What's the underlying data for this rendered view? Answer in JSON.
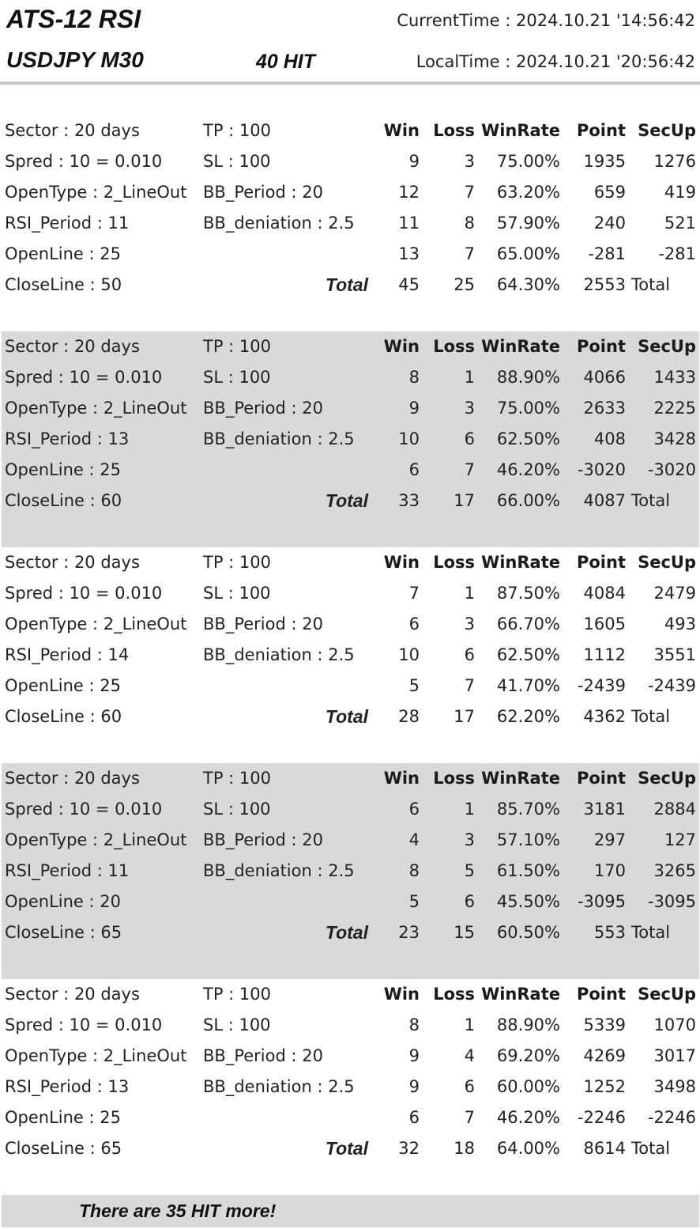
{
  "header": {
    "title": "ATS-12 RSI",
    "subtitle": "USDJPY M30",
    "hit": "40 HIT",
    "current_time": "CurrentTime : 2024.10.21  '14:56:42",
    "local_time": "LocalTime : 2024.10.21  '20:56:42"
  },
  "columns": {
    "win": "Win",
    "loss": "Loss",
    "winrate": "WinRate",
    "point": "Point",
    "secup": "SecUp"
  },
  "total_label": "Total",
  "total_word": "Total",
  "blocks": [
    {
      "params": [
        [
          "Sector : 20 days",
          "TP : 100"
        ],
        [
          "Spred : 10 = 0.010",
          "SL : 100"
        ],
        [
          "OpenType : 2_LineOut",
          "BB_Period : 20"
        ],
        [
          "RSI_Period : 11",
          "BB_deniation : 2.5"
        ],
        [
          "OpenLine : 25",
          ""
        ],
        [
          "CloseLine : 50",
          ""
        ]
      ],
      "stats": [
        [
          "9",
          "3",
          "75.00%",
          "1935",
          "1276"
        ],
        [
          "12",
          "7",
          "63.20%",
          "659",
          "419"
        ],
        [
          "11",
          "8",
          "57.90%",
          "240",
          "521"
        ],
        [
          "13",
          "7",
          "65.00%",
          "-281",
          "-281"
        ]
      ],
      "total": [
        "45",
        "25",
        "64.30%",
        "2553"
      ]
    },
    {
      "params": [
        [
          "Sector : 20 days",
          "TP : 100"
        ],
        [
          "Spred : 10 = 0.010",
          "SL : 100"
        ],
        [
          "OpenType : 2_LineOut",
          "BB_Period : 20"
        ],
        [
          "RSI_Period : 13",
          "BB_deniation : 2.5"
        ],
        [
          "OpenLine : 25",
          ""
        ],
        [
          "CloseLine : 60",
          ""
        ]
      ],
      "stats": [
        [
          "8",
          "1",
          "88.90%",
          "4066",
          "1433"
        ],
        [
          "9",
          "3",
          "75.00%",
          "2633",
          "2225"
        ],
        [
          "10",
          "6",
          "62.50%",
          "408",
          "3428"
        ],
        [
          "6",
          "7",
          "46.20%",
          "-3020",
          "-3020"
        ]
      ],
      "total": [
        "33",
        "17",
        "66.00%",
        "4087"
      ]
    },
    {
      "params": [
        [
          "Sector : 20 days",
          "TP : 100"
        ],
        [
          "Spred : 10 = 0.010",
          "SL : 100"
        ],
        [
          "OpenType : 2_LineOut",
          "BB_Period : 20"
        ],
        [
          "RSI_Period : 14",
          "BB_deniation : 2.5"
        ],
        [
          "OpenLine : 25",
          ""
        ],
        [
          "CloseLine : 60",
          ""
        ]
      ],
      "stats": [
        [
          "7",
          "1",
          "87.50%",
          "4084",
          "2479"
        ],
        [
          "6",
          "3",
          "66.70%",
          "1605",
          "493"
        ],
        [
          "10",
          "6",
          "62.50%",
          "1112",
          "3551"
        ],
        [
          "5",
          "7",
          "41.70%",
          "-2439",
          "-2439"
        ]
      ],
      "total": [
        "28",
        "17",
        "62.20%",
        "4362"
      ]
    },
    {
      "params": [
        [
          "Sector : 20 days",
          "TP : 100"
        ],
        [
          "Spred : 10 = 0.010",
          "SL : 100"
        ],
        [
          "OpenType : 2_LineOut",
          "BB_Period : 20"
        ],
        [
          "RSI_Period : 11",
          "BB_deniation : 2.5"
        ],
        [
          "OpenLine : 20",
          ""
        ],
        [
          "CloseLine : 65",
          ""
        ]
      ],
      "stats": [
        [
          "6",
          "1",
          "85.70%",
          "3181",
          "2884"
        ],
        [
          "4",
          "3",
          "57.10%",
          "297",
          "127"
        ],
        [
          "8",
          "5",
          "61.50%",
          "170",
          "3265"
        ],
        [
          "5",
          "6",
          "45.50%",
          "-3095",
          "-3095"
        ]
      ],
      "total": [
        "23",
        "15",
        "60.50%",
        "553"
      ]
    },
    {
      "params": [
        [
          "Sector : 20 days",
          "TP : 100"
        ],
        [
          "Spred : 10 = 0.010",
          "SL : 100"
        ],
        [
          "OpenType : 2_LineOut",
          "BB_Period : 20"
        ],
        [
          "RSI_Period : 13",
          "BB_deniation : 2.5"
        ],
        [
          "OpenLine : 25",
          ""
        ],
        [
          "CloseLine : 65",
          ""
        ]
      ],
      "stats": [
        [
          "8",
          "1",
          "88.90%",
          "5339",
          "1070"
        ],
        [
          "9",
          "4",
          "69.20%",
          "4269",
          "3017"
        ],
        [
          "9",
          "6",
          "60.00%",
          "1252",
          "3498"
        ],
        [
          "6",
          "7",
          "46.20%",
          "-2246",
          "-2246"
        ]
      ],
      "total": [
        "32",
        "18",
        "64.00%",
        "8614"
      ]
    }
  ],
  "footer": {
    "text": "There are 35  HIT more!"
  }
}
